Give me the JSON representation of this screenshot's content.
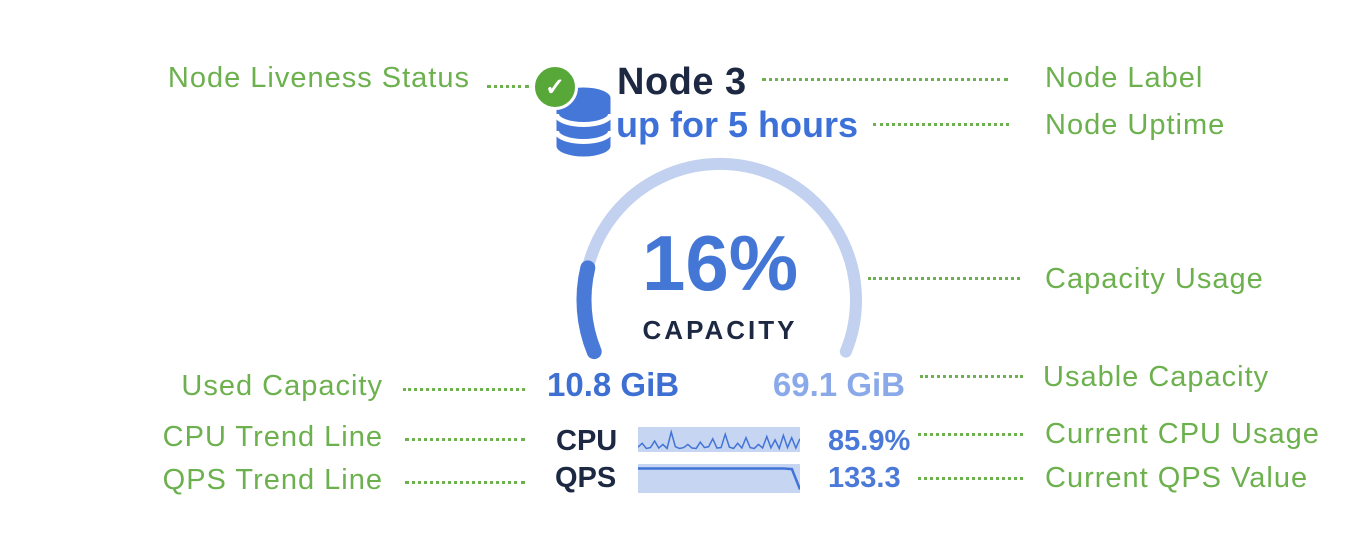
{
  "node_card": {
    "name": "Node 3",
    "uptime": "up for 5 hours",
    "liveness_check": "✓",
    "capacity_percent": "16%",
    "capacity_caption": "CAPACITY",
    "used_capacity": "10.8 GiB",
    "usable_capacity": "69.1 GiB",
    "cpu_label": "CPU",
    "cpu_value": "85.9%",
    "qps_label": "QPS",
    "qps_value": "133.3"
  },
  "callouts": {
    "node_liveness": "Node Liveness Status",
    "node_label": "Node Label",
    "node_uptime": "Node Uptime",
    "capacity_usage": "Capacity Usage",
    "used_capacity": "Used Capacity",
    "usable_capacity": "Usable Capacity",
    "cpu_trend": "CPU Trend Line",
    "current_cpu": "Current CPU Usage",
    "qps_trend": "QPS Trend Line",
    "current_qps": "Current QPS Value"
  },
  "colors": {
    "annotation_green": "#6cb14e",
    "liveness_green": "#57a839",
    "db_blue": "#4577d8",
    "dark_navy": "#1d2942",
    "uptime_blue": "#3e71d8",
    "primary_blue": "#4376d5",
    "used_blue": "#3e6fd2",
    "light_blue": "#8aa9e9",
    "value_blue": "#4a79d9",
    "gauge_track": "#c2d1ef",
    "gauge_fill": "#4a7ad8",
    "sparkline_bg": "#c6d5f1",
    "sparkline_line": "#4273d6"
  },
  "chart_data": [
    {
      "type": "gauge",
      "title": "CAPACITY",
      "value_pct": 16,
      "used": "10.8 GiB",
      "usable": "69.1 GiB",
      "arc_start_deg": 157.7,
      "arc_sweep_deg": 224.6
    },
    {
      "type": "line",
      "name": "cpu_sparkline",
      "current_value": "85.9%",
      "values": [
        0.18,
        0.35,
        0.12,
        0.16,
        0.45,
        0.14,
        0.3,
        0.12,
        0.85,
        0.2,
        0.12,
        0.16,
        0.3,
        0.14,
        0.12,
        0.4,
        0.16,
        0.2,
        0.55,
        0.14,
        0.16,
        0.75,
        0.18,
        0.12,
        0.35,
        0.14,
        0.6,
        0.16,
        0.12,
        0.3,
        0.14,
        0.65,
        0.15,
        0.5,
        0.12,
        0.7,
        0.16,
        0.6,
        0.14,
        0.55
      ]
    },
    {
      "type": "line",
      "name": "qps_sparkline",
      "current_value": "133.3",
      "values": [
        0.9,
        0.9,
        0.9,
        0.9,
        0.9,
        0.9,
        0.9,
        0.9,
        0.9,
        0.9,
        0.9,
        0.9,
        0.9,
        0.9,
        0.9,
        0.9,
        0.9,
        0.9,
        0.9,
        0.88,
        0.1
      ]
    }
  ]
}
